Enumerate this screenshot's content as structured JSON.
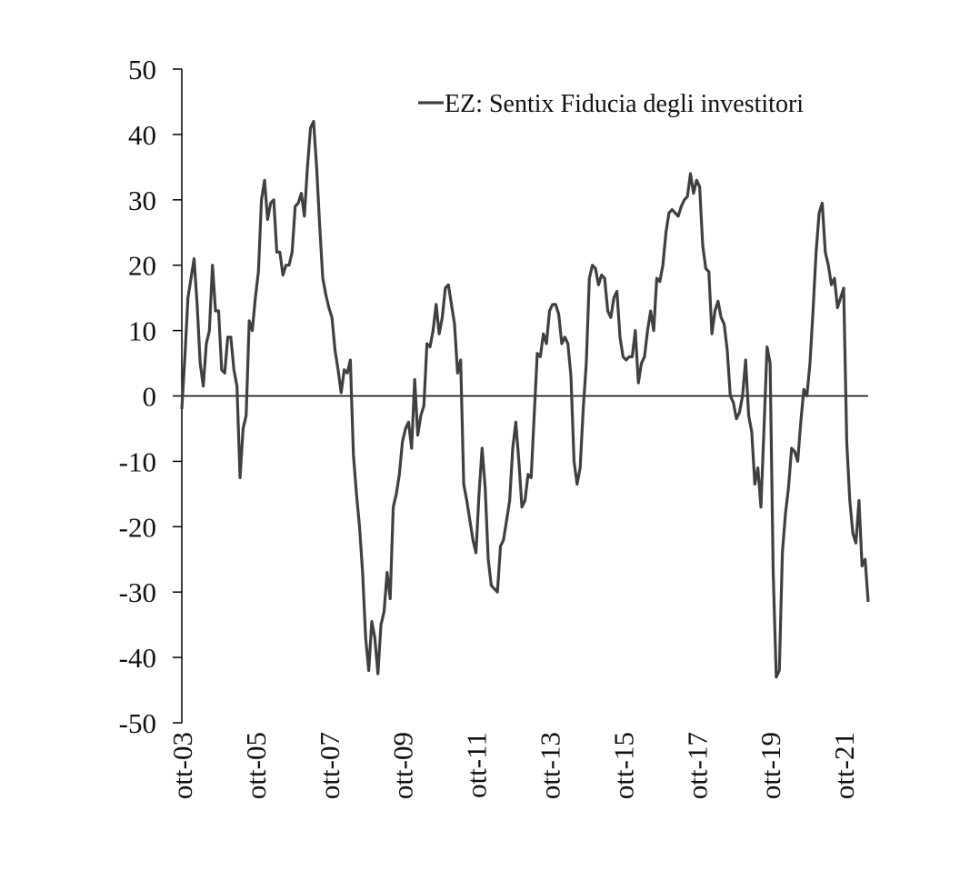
{
  "chart_data": {
    "type": "line",
    "categories": [
      "ott-03",
      null,
      null,
      null,
      null,
      null,
      null,
      null,
      null,
      null,
      null,
      null,
      null,
      null,
      null,
      null,
      null,
      null,
      null,
      null,
      null,
      null,
      null,
      null,
      "ott-05",
      null,
      null,
      null,
      null,
      null,
      null,
      null,
      null,
      null,
      null,
      null,
      null,
      null,
      null,
      null,
      null,
      null,
      null,
      null,
      null,
      null,
      null,
      null,
      "ott-07",
      null,
      null,
      null,
      null,
      null,
      null,
      null,
      null,
      null,
      null,
      null,
      null,
      null,
      null,
      null,
      null,
      null,
      null,
      null,
      null,
      null,
      null,
      null,
      "ott-09",
      null,
      null,
      null,
      null,
      null,
      null,
      null,
      null,
      null,
      null,
      null,
      null,
      null,
      null,
      null,
      null,
      null,
      null,
      null,
      null,
      null,
      null,
      null,
      "ott-11",
      null,
      null,
      null,
      null,
      null,
      null,
      null,
      null,
      null,
      null,
      null,
      null,
      null,
      null,
      null,
      null,
      null,
      null,
      null,
      null,
      null,
      null,
      null,
      "ott-13",
      null,
      null,
      null,
      null,
      null,
      null,
      null,
      null,
      null,
      null,
      null,
      null,
      null,
      null,
      null,
      null,
      null,
      null,
      null,
      null,
      null,
      null,
      null,
      "ott-15",
      null,
      null,
      null,
      null,
      null,
      null,
      null,
      null,
      null,
      null,
      null,
      null,
      null,
      null,
      null,
      null,
      null,
      null,
      null,
      null,
      null,
      null,
      null,
      "ott-17",
      null,
      null,
      null,
      null,
      null,
      null,
      null,
      null,
      null,
      null,
      null,
      null,
      null,
      null,
      null,
      null,
      null,
      null,
      null,
      null,
      null,
      null,
      null,
      "ott-19",
      null,
      null,
      null,
      null,
      null,
      null,
      null,
      null,
      null,
      null,
      null,
      null,
      null,
      null,
      null,
      null,
      null,
      null,
      null,
      null,
      null,
      null,
      null,
      "ott-21",
      null,
      null,
      null,
      null,
      null,
      null,
      null,
      null
    ],
    "series": [
      {
        "name": "EZ: Sentix Fiducia degli investitori",
        "color": "#404040",
        "values": [
          -2,
          6,
          15,
          18,
          21,
          14,
          5,
          1.5,
          8,
          10,
          20,
          13,
          13,
          4,
          3.5,
          9,
          9,
          4,
          1.5,
          -12.5,
          -5,
          -3,
          11.5,
          10,
          15,
          19,
          30,
          33,
          27,
          29.5,
          30,
          22,
          22,
          18.5,
          20,
          20,
          22,
          29,
          29.5,
          31,
          27.5,
          35,
          41,
          42,
          35,
          26,
          18,
          15.5,
          13.5,
          12,
          7,
          4,
          0.5,
          4,
          3.5,
          5.5,
          -9,
          -15,
          -20,
          -27,
          -37,
          -42,
          -34.5,
          -37,
          -42.5,
          -35,
          -33,
          -27,
          -31,
          -17,
          -15,
          -12,
          -7,
          -5,
          -4,
          -8,
          2.5,
          -6,
          -3,
          -1.5,
          8,
          7.5,
          10,
          14,
          9.5,
          12,
          16.5,
          17,
          14,
          11,
          3.5,
          5.5,
          -13.5,
          -16,
          -19,
          -22,
          -24,
          -15,
          -8,
          -14,
          -25,
          -29,
          -29.5,
          -30,
          -23,
          -22,
          -19,
          -16,
          -8,
          -4,
          -10,
          -17,
          -16,
          -12,
          -12.5,
          -3,
          6.5,
          6,
          9.5,
          8,
          13,
          14,
          14,
          12.5,
          8,
          9,
          8,
          3,
          -10,
          -13.5,
          -11,
          -2,
          5,
          18,
          20,
          19.5,
          17,
          18.5,
          18,
          13,
          12,
          15,
          16,
          9,
          6,
          5.5,
          6,
          6,
          10,
          2,
          5,
          6,
          10,
          13,
          10,
          18,
          17.5,
          20,
          25,
          28,
          28.5,
          28,
          27.5,
          29,
          30,
          30.5,
          34,
          31,
          33,
          32,
          23,
          19.5,
          19,
          9.5,
          13,
          14.5,
          12,
          11,
          7,
          0,
          -1,
          -3.5,
          -2.5,
          0,
          5.5,
          -3,
          -5.5,
          -13.5,
          -11,
          -17,
          -5,
          7.5,
          5,
          -27,
          -43,
          -42,
          -24,
          -18,
          -14,
          -8,
          -8.5,
          -10,
          -4,
          1,
          0,
          5,
          13,
          22,
          28,
          29.5,
          22,
          20,
          17,
          18,
          13.5,
          15,
          16.5,
          -7,
          -16,
          -21,
          -22.5,
          -16,
          -26,
          -25,
          -31.5
        ]
      }
    ],
    "ylim": [
      -50,
      50
    ],
    "yticks": [
      -50,
      -40,
      -30,
      -20,
      -10,
      0,
      10,
      20,
      30,
      40,
      50
    ],
    "legend": "top-right"
  }
}
